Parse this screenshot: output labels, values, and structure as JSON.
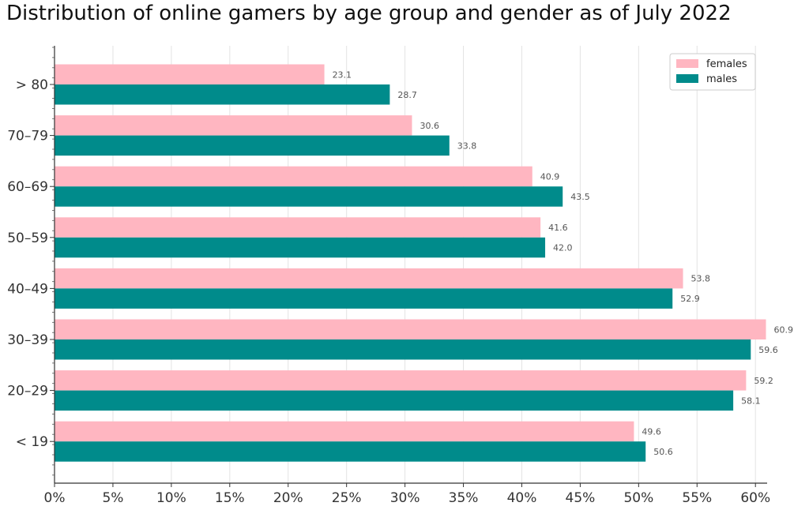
{
  "chart_data": {
    "type": "bar",
    "orientation": "horizontal",
    "title": "Distribution of online gamers by age group and gender as of July 2022",
    "categories": [
      "< 19",
      "20-29",
      "30-39",
      "40-49",
      "50-59",
      "60-69",
      "70-79",
      "> 80"
    ],
    "series": [
      {
        "name": "females",
        "color": "#ffb6c1",
        "values": [
          49.6,
          59.2,
          60.9,
          53.8,
          41.6,
          40.9,
          30.6,
          23.1
        ]
      },
      {
        "name": "males",
        "color": "#008b8b",
        "values": [
          50.6,
          58.1,
          59.6,
          52.9,
          42.0,
          43.5,
          33.8,
          28.7
        ]
      }
    ],
    "xticks": [
      "0%",
      "5%",
      "10%",
      "15%",
      "20%",
      "25%",
      "30%",
      "35%",
      "40%",
      "45%",
      "50%",
      "55%",
      "60%"
    ],
    "xlim": [
      0,
      61
    ],
    "grid": "vertical",
    "legend": "top-right"
  }
}
